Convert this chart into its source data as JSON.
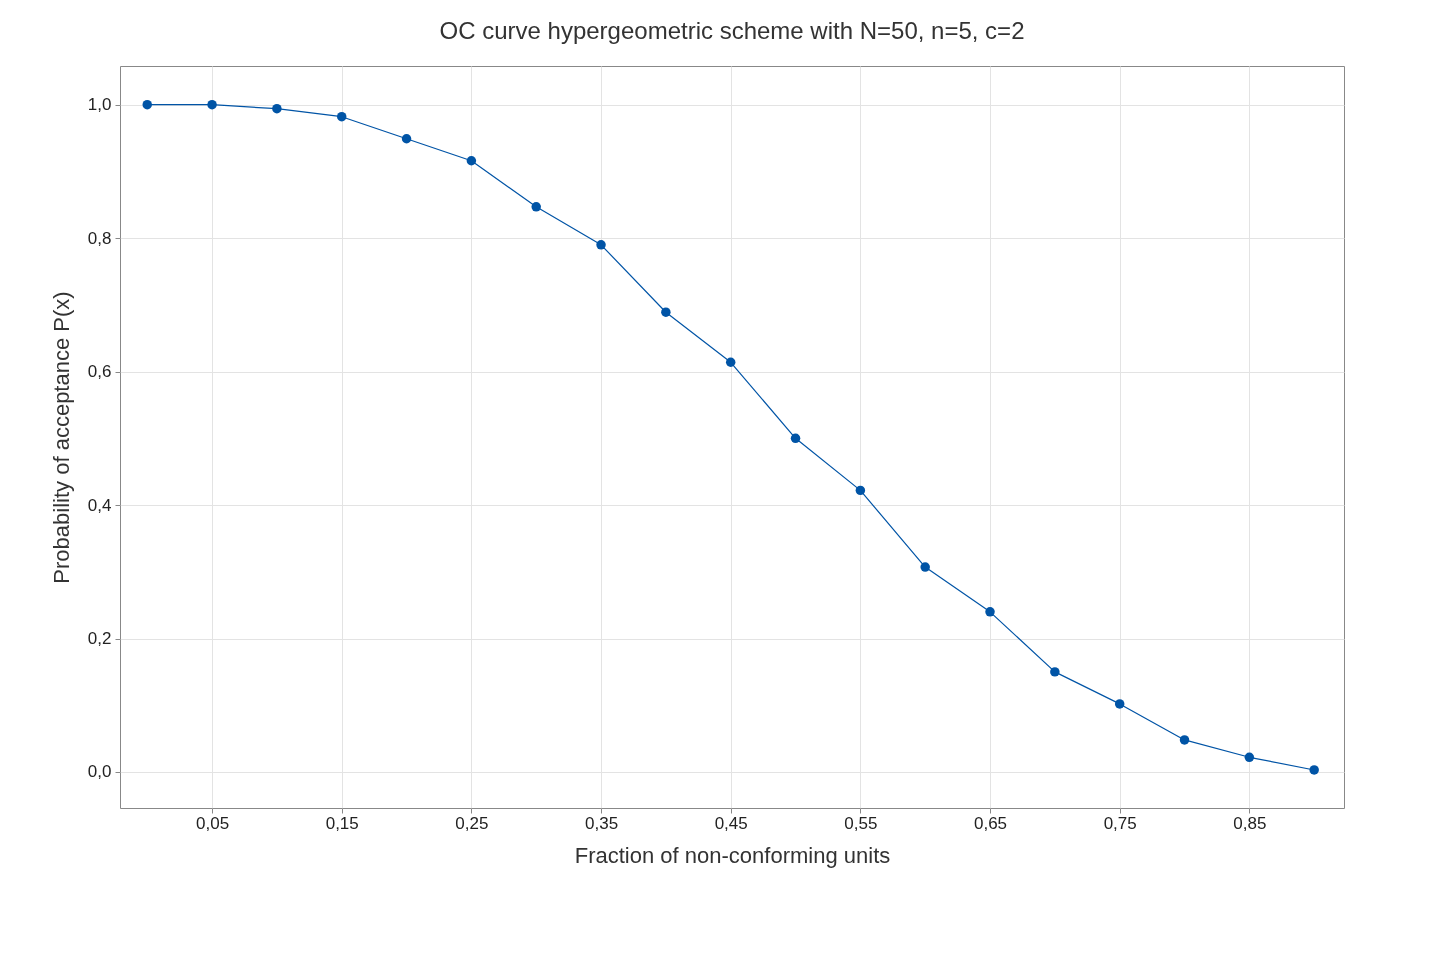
{
  "chart_data": {
    "type": "line",
    "title": "OC curve hypergeometric scheme with N=50, n=5, c=2",
    "xlabel": "Fraction of non-conforming units",
    "ylabel": "Probability of acceptance P(x)",
    "x": [
      0,
      0.05,
      0.1,
      0.15,
      0.2,
      0.25,
      0.3,
      0.35,
      0.4,
      0.45,
      0.5,
      0.55,
      0.6,
      0.65,
      0.7,
      0.75,
      0.8,
      0.85,
      0.9
    ],
    "series": [
      {
        "color": "#0054a6",
        "values": [
          1.0,
          1.0,
          0.994,
          0.982,
          0.949,
          0.916,
          0.847,
          0.79,
          0.689,
          0.614,
          0.5,
          0.422,
          0.307,
          0.24,
          0.15,
          0.102,
          0.048,
          0.022,
          0.003
        ]
      }
    ],
    "xlim": [
      -0.021,
      0.923
    ],
    "ylim": [
      -0.054,
      1.058
    ],
    "xticks": [
      {
        "value": 0.05,
        "label": "0,05"
      },
      {
        "value": 0.15,
        "label": "0,15"
      },
      {
        "value": 0.25,
        "label": "0,25"
      },
      {
        "value": 0.35,
        "label": "0,35"
      },
      {
        "value": 0.45,
        "label": "0,45"
      },
      {
        "value": 0.55,
        "label": "0,55"
      },
      {
        "value": 0.65,
        "label": "0,65"
      },
      {
        "value": 0.75,
        "label": "0,75"
      },
      {
        "value": 0.85,
        "label": "0,85"
      }
    ],
    "yticks": [
      {
        "value": 0,
        "label": "0,0"
      },
      {
        "value": 0.2,
        "label": "0,2"
      },
      {
        "value": 0.4,
        "label": "0,4"
      },
      {
        "value": 0.6,
        "label": "0,6"
      },
      {
        "value": 0.8,
        "label": "0,8"
      },
      {
        "value": 1,
        "label": "1,0"
      }
    ],
    "grid": true,
    "marker": "circle",
    "line_style": "solid"
  }
}
